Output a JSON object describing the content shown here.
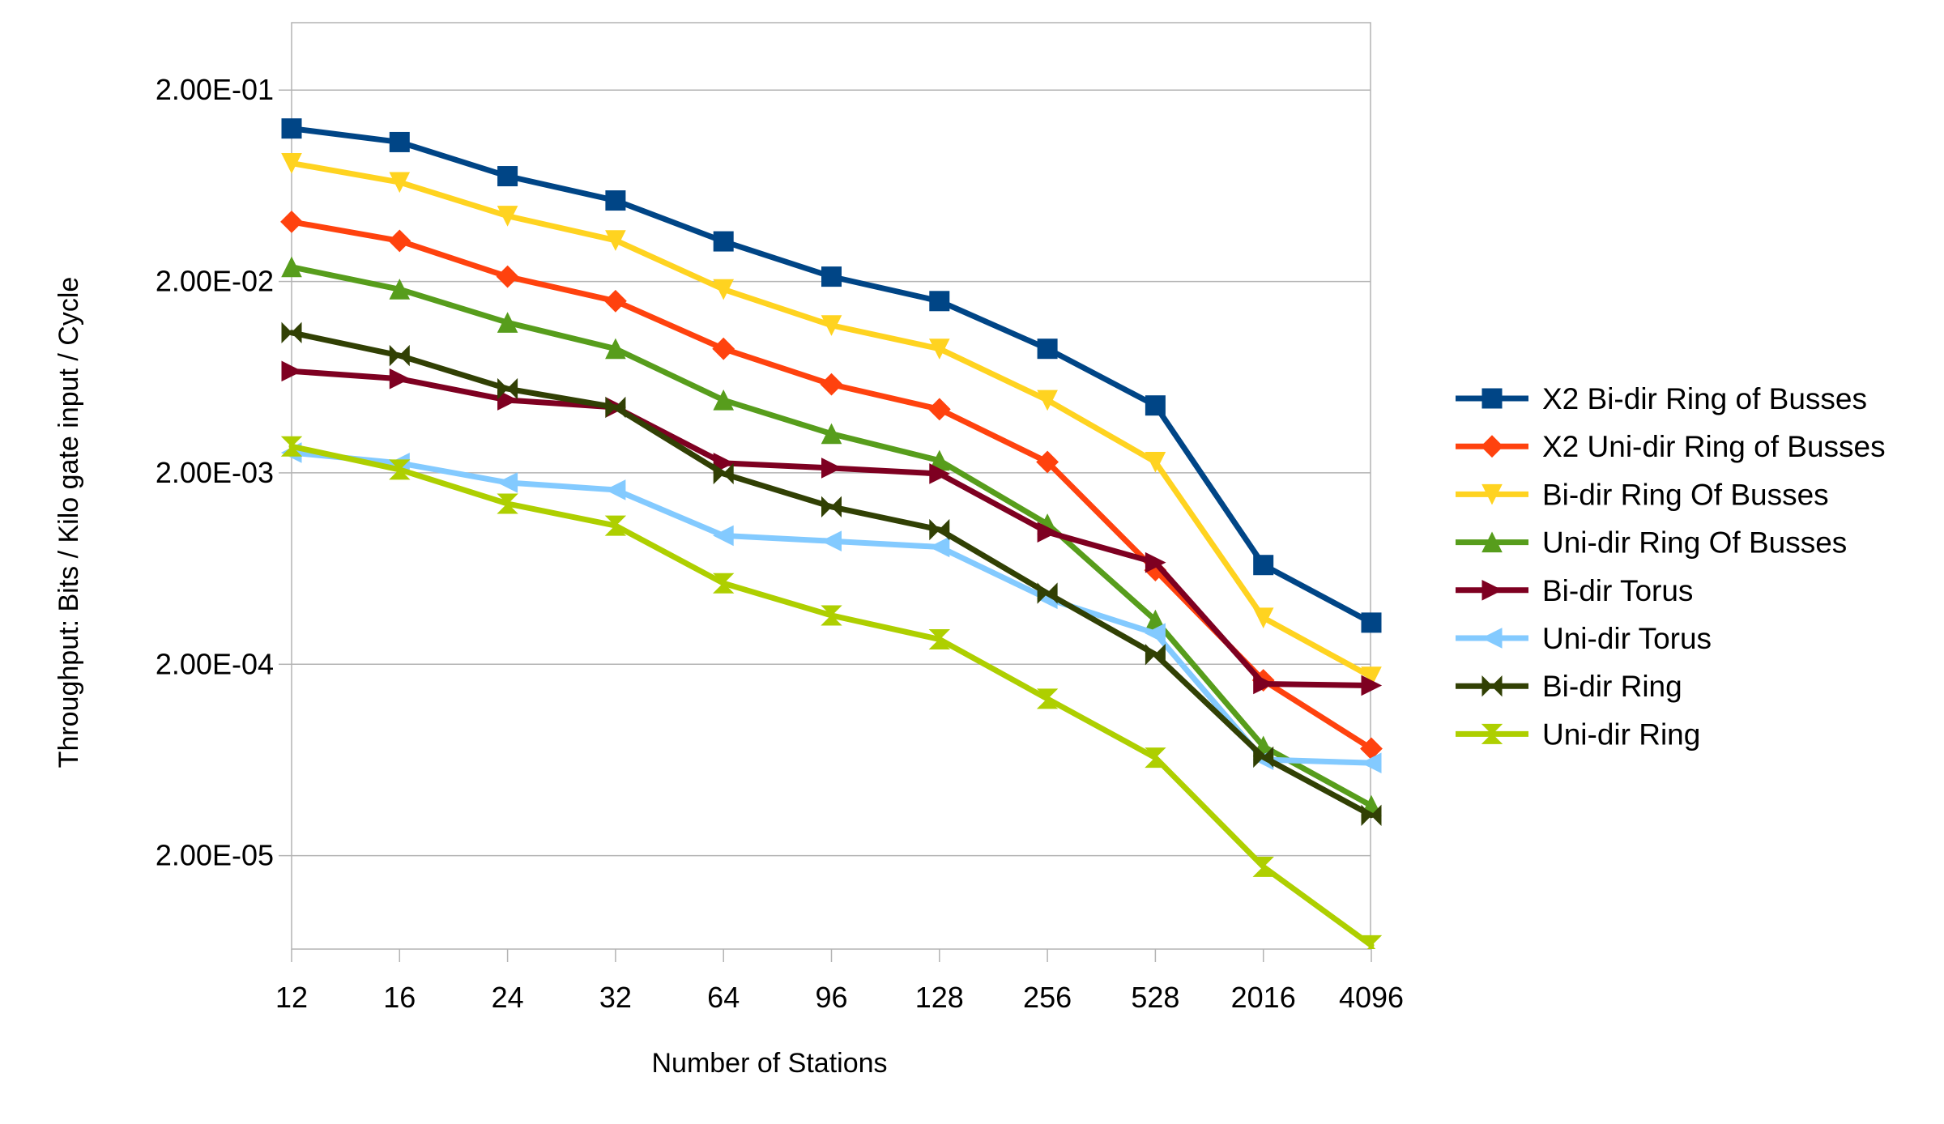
{
  "chart_data": {
    "type": "line",
    "title": "",
    "xlabel": "Number of Stations",
    "ylabel": "Throughput: Bits / Kilo gate input / Cycle",
    "y_scale": "log",
    "ylim": [
      6.5e-06,
      0.45
    ],
    "yticks": [
      0.2,
      0.02,
      0.002,
      0.0002,
      2e-05
    ],
    "ytick_labels": [
      "2.00E-01",
      "2.00E-02",
      "2.00E-03",
      "2.00E-04",
      "2.00E-05"
    ],
    "categories": [
      "12",
      "16",
      "24",
      "32",
      "64",
      "96",
      "128",
      "256",
      "528",
      "2016",
      "4096"
    ],
    "grid": "horizontal",
    "legend_position": "right",
    "series": [
      {
        "name": "X2 Bi-dir Ring of Busses",
        "color": "#004586",
        "marker": "square",
        "values": [
          0.126,
          0.107,
          0.071,
          0.053,
          0.0324,
          0.0212,
          0.0158,
          0.0089,
          0.0045,
          0.00066,
          0.00033
        ]
      },
      {
        "name": "X2 Uni-dir Ring of Busses",
        "color": "#ff420e",
        "marker": "diamond",
        "values": [
          0.041,
          0.0326,
          0.0212,
          0.0158,
          0.0089,
          0.0058,
          0.0043,
          0.00228,
          0.00062,
          0.000165,
          7.25e-05
        ]
      },
      {
        "name": "Bi-dir Ring Of Busses",
        "color": "#ffd320",
        "marker": "triangle-down",
        "values": [
          0.083,
          0.066,
          0.044,
          0.0328,
          0.0182,
          0.0118,
          0.0089,
          0.0048,
          0.00228,
          0.00035,
          0.000172
        ]
      },
      {
        "name": "Uni-dir Ring Of Busses",
        "color": "#579d1c",
        "marker": "triangle-up",
        "values": [
          0.0238,
          0.0182,
          0.0122,
          0.0089,
          0.0048,
          0.0032,
          0.00232,
          0.00108,
          0.00034,
          7.45e-05,
          3.65e-05
        ]
      },
      {
        "name": "Bi-dir Torus",
        "color": "#7e0021",
        "marker": "triangle-right",
        "values": [
          0.0068,
          0.0062,
          0.0048,
          0.0044,
          0.00225,
          0.00212,
          0.00198,
          0.00098,
          0.00068,
          0.000158,
          0.000155
        ]
      },
      {
        "name": "Uni-dir Torus",
        "color": "#83caff",
        "marker": "triangle-left",
        "values": [
          0.00255,
          0.00225,
          0.00178,
          0.00163,
          0.00094,
          0.00088,
          0.00082,
          0.00044,
          0.00029,
          6.35e-05,
          6.1e-05
        ]
      },
      {
        "name": "Bi-dir Ring",
        "color": "#314004",
        "marker": "bowtie",
        "values": [
          0.0108,
          0.0082,
          0.0055,
          0.0044,
          0.00198,
          0.00133,
          0.00101,
          0.00047,
          0.000225,
          6.55e-05,
          3.25e-05
        ]
      },
      {
        "name": "Uni-dir Ring",
        "color": "#aecf00",
        "marker": "hourglass",
        "values": [
          0.00275,
          0.00208,
          0.00138,
          0.00106,
          0.00053,
          0.00036,
          0.00027,
          0.000132,
          6.5e-05,
          1.75e-05,
          6.8e-06
        ]
      }
    ]
  }
}
